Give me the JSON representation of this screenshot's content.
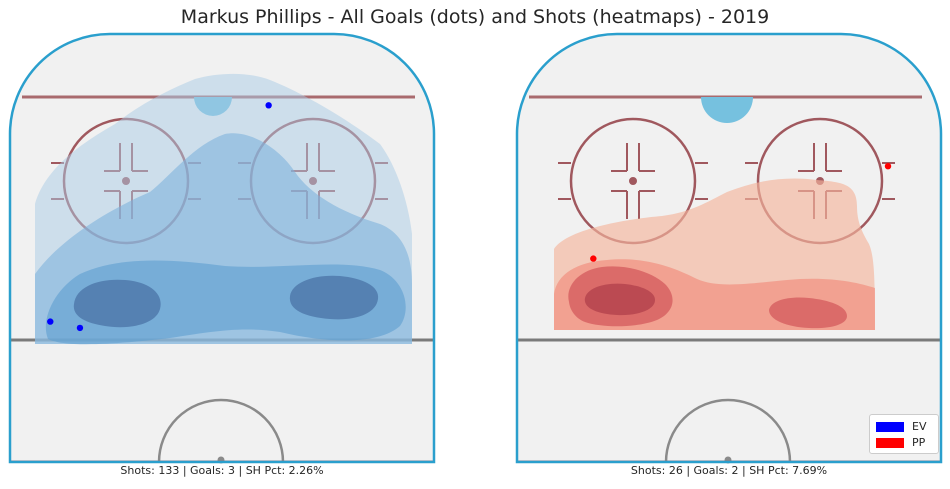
{
  "title": "Markus Phillips - All Goals (dots) and Shots (heatmaps) - 2019",
  "colors": {
    "ice": "#f1f1f1",
    "boards": "#2a9fcd",
    "blue_line": "#7a7a7a",
    "red_line": "#a96a6e",
    "crease": "#76c1df",
    "faceoff": "#a0585e",
    "center_circle": "#8a8a8a"
  },
  "chart_data": [
    {
      "type": "heatmap",
      "panel": "left",
      "palette": "Blues",
      "summary": "Shots: 133 | Goals: 3 | SH Pct: 2.26%",
      "shots": 133,
      "goals": 3,
      "sh_pct": "2.26%",
      "goal_points": [
        {
          "x": 22,
          "y": 47,
          "situation": "EV"
        },
        {
          "x": -81,
          "y": -56,
          "situation": "EV"
        },
        {
          "x": -67,
          "y": -59,
          "situation": "EV"
        }
      ]
    },
    {
      "type": "heatmap",
      "panel": "right",
      "palette": "Reds",
      "summary": "Shots: 26 | Goals: 2 | SH Pct: 7.69%",
      "shots": 26,
      "goals": 2,
      "sh_pct": "7.69%",
      "goal_points": [
        {
          "x": 75,
          "y": 18,
          "situation": "PP"
        },
        {
          "x": -64,
          "y": -26,
          "situation": "PP"
        }
      ]
    }
  ],
  "legend": [
    {
      "label": "EV",
      "color": "#0000ff"
    },
    {
      "label": "PP",
      "color": "#ff0000"
    }
  ]
}
